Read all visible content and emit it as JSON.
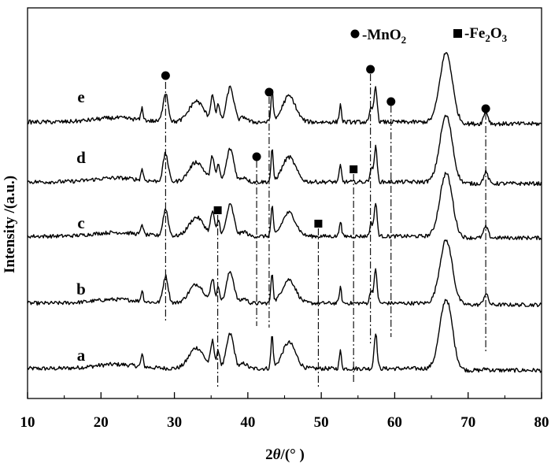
{
  "chart_data": {
    "type": "line",
    "xlabel_prefix": "2",
    "xlabel_var": "θ",
    "xlabel_suffix": "/(°  )",
    "ylabel": "Intensity /(a.u.)",
    "xlim": [
      10,
      80
    ],
    "xticks": [
      10,
      20,
      30,
      40,
      50,
      60,
      70,
      80
    ],
    "yticks": "none",
    "legend": [
      {
        "marker": "circle",
        "prefix": "-MnO",
        "sub": "2",
        "suffix": ""
      },
      {
        "marker": "square",
        "prefix": "-Fe",
        "sub": "2",
        "mid": "O",
        "sub2": "3"
      }
    ],
    "series": [
      {
        "name": "a",
        "offset": 0
      },
      {
        "name": "b",
        "offset": 1
      },
      {
        "name": "c",
        "offset": 2
      },
      {
        "name": "d",
        "offset": 3
      },
      {
        "name": "e",
        "offset": 4
      }
    ],
    "mno2_peaks_2theta": [
      28.8,
      41.2,
      42.9,
      56.7,
      59.5,
      72.4
    ],
    "fe2o3_peaks_2theta": [
      35.9,
      49.6,
      54.4
    ],
    "peaks": [
      [
        25.6,
        0.35,
        0.15
      ],
      [
        28.8,
        0.0,
        0.3
      ],
      [
        33.0,
        0.6,
        1.0
      ],
      [
        35.2,
        0.75,
        0.25
      ],
      [
        36.0,
        0.5,
        0.2
      ],
      [
        37.6,
        1.0,
        0.5
      ],
      [
        39.5,
        0.15,
        0.4
      ],
      [
        43.3,
        0.95,
        0.15
      ],
      [
        45.6,
        0.75,
        0.9
      ],
      [
        52.6,
        0.5,
        0.15
      ],
      [
        57.4,
        1.05,
        0.2
      ],
      [
        67.0,
        2.0,
        0.85
      ],
      [
        72.5,
        0.05,
        0.3
      ]
    ]
  }
}
